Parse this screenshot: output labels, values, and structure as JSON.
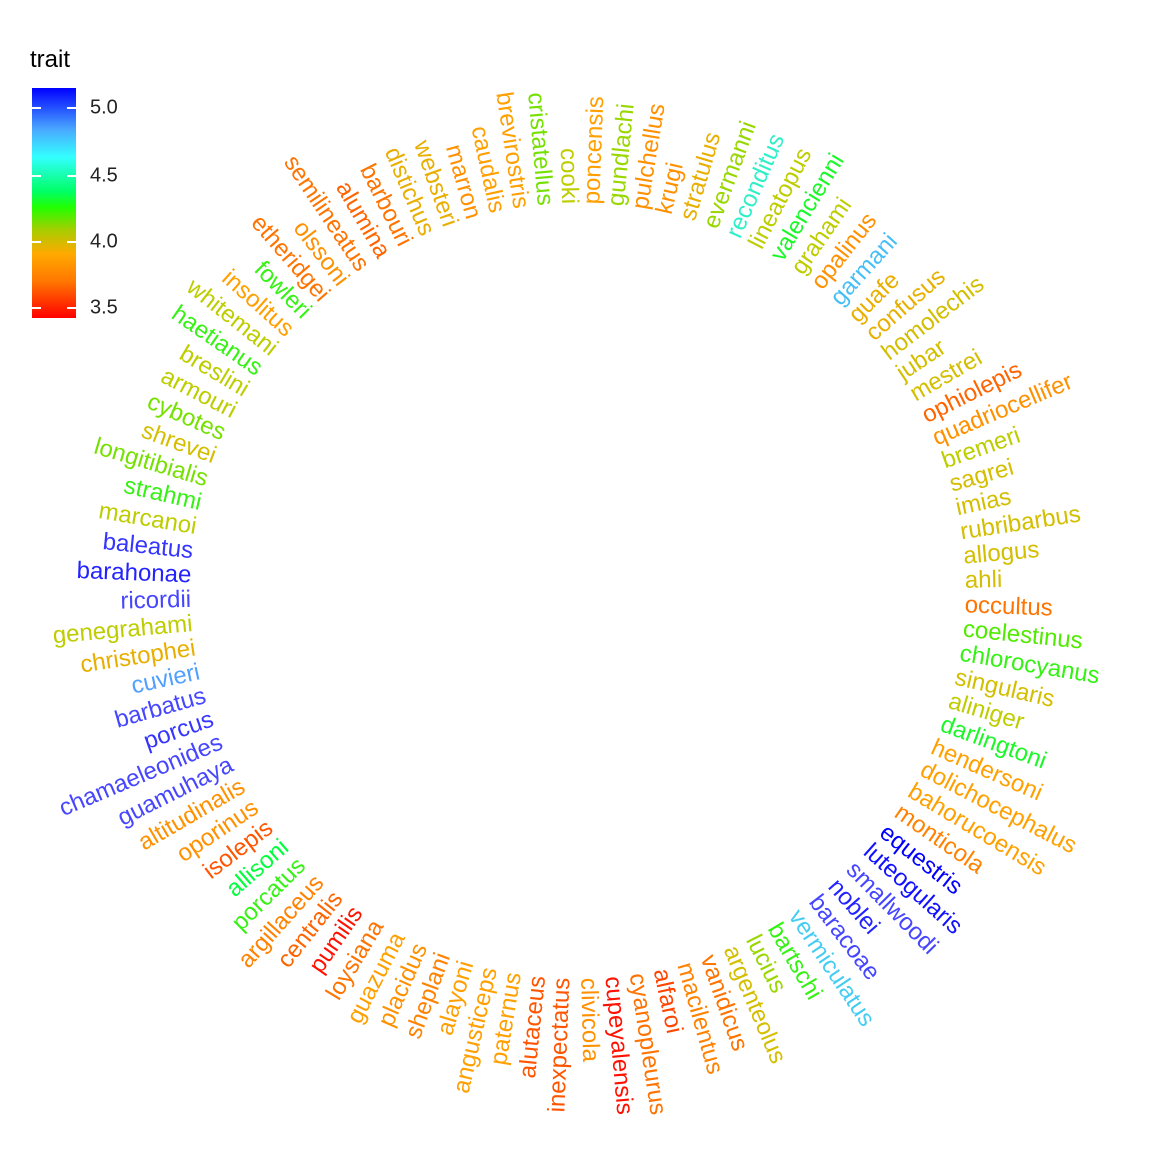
{
  "chart_data": {
    "type": "circular-tip-labels",
    "legend": {
      "title": "trait",
      "ticks": [
        {
          "label": "5.0",
          "value": 5.0
        },
        {
          "label": "4.5",
          "value": 4.5
        },
        {
          "label": "4.0",
          "value": 4.0
        },
        {
          "label": "3.5",
          "value": 3.5
        }
      ],
      "range": [
        3.4,
        5.2
      ],
      "colors": {
        "low": "#ff0000",
        "mid": "#ffaa00",
        "green": "#22ff00",
        "cyan": "#33ffff",
        "high": "#0000ff"
      }
    },
    "labels": [
      {
        "name": "occultus",
        "value": 3.75
      },
      {
        "name": "coelestinus",
        "value": 4.2
      },
      {
        "name": "chlorocyanus",
        "value": 4.25
      },
      {
        "name": "singularis",
        "value": 4.0
      },
      {
        "name": "aliniger",
        "value": 4.05
      },
      {
        "name": "darlingtoni",
        "value": 4.3
      },
      {
        "name": "hendersoni",
        "value": 3.9
      },
      {
        "name": "dolichocephalus",
        "value": 3.9
      },
      {
        "name": "bahorucoensis",
        "value": 3.9
      },
      {
        "name": "monticola",
        "value": 3.8
      },
      {
        "name": "equestris",
        "value": 5.2
      },
      {
        "name": "luteogularis",
        "value": 5.15
      },
      {
        "name": "smallwoodi",
        "value": 5.0
      },
      {
        "name": "noblei",
        "value": 5.1
      },
      {
        "name": "baracoae",
        "value": 5.0
      },
      {
        "name": "vermiculatus",
        "value": 4.7
      },
      {
        "name": "bartschi",
        "value": 4.25
      },
      {
        "name": "lucius",
        "value": 4.1
      },
      {
        "name": "argenteolus",
        "value": 4.0
      },
      {
        "name": "vanidicus",
        "value": 3.75
      },
      {
        "name": "macilentus",
        "value": 3.8
      },
      {
        "name": "alfaroi",
        "value": 3.6
      },
      {
        "name": "cyanopleurus",
        "value": 3.75
      },
      {
        "name": "cupeyalensis",
        "value": 3.45
      },
      {
        "name": "clivicola",
        "value": 3.85
      },
      {
        "name": "inexpectatus",
        "value": 3.65
      },
      {
        "name": "alutaceus",
        "value": 3.65
      },
      {
        "name": "paternus",
        "value": 3.9
      },
      {
        "name": "angusticeps",
        "value": 3.9
      },
      {
        "name": "alayoni",
        "value": 3.9
      },
      {
        "name": "sheplani",
        "value": 3.8
      },
      {
        "name": "placidus",
        "value": 3.85
      },
      {
        "name": "guazuma",
        "value": 3.9
      },
      {
        "name": "loysiana",
        "value": 3.75
      },
      {
        "name": "pumilis",
        "value": 3.45
      },
      {
        "name": "centralis",
        "value": 3.7
      },
      {
        "name": "argillaceus",
        "value": 3.8
      },
      {
        "name": "porcatus",
        "value": 4.25
      },
      {
        "name": "allisoni",
        "value": 4.35
      },
      {
        "name": "isolepis",
        "value": 3.65
      },
      {
        "name": "oporinus",
        "value": 3.85
      },
      {
        "name": "altitudinalis",
        "value": 3.85
      },
      {
        "name": "guamuhaya",
        "value": 5.0
      },
      {
        "name": "chamaeleonides",
        "value": 5.0
      },
      {
        "name": "porcus",
        "value": 5.05
      },
      {
        "name": "barbatus",
        "value": 5.0
      },
      {
        "name": "cuvieri",
        "value": 4.85
      },
      {
        "name": "christophei",
        "value": 3.95
      },
      {
        "name": "genegrahami",
        "value": 4.05
      },
      {
        "name": "ricordii",
        "value": 5.0
      },
      {
        "name": "barahonae",
        "value": 5.1
      },
      {
        "name": "baleatus",
        "value": 5.05
      },
      {
        "name": "marcanoi",
        "value": 4.05
      },
      {
        "name": "strahmi",
        "value": 4.25
      },
      {
        "name": "longitibialis",
        "value": 4.15
      },
      {
        "name": "shrevei",
        "value": 4.0
      },
      {
        "name": "cybotes",
        "value": 4.15
      },
      {
        "name": "armouri",
        "value": 4.05
      },
      {
        "name": "breslini",
        "value": 4.05
      },
      {
        "name": "haetianus",
        "value": 4.25
      },
      {
        "name": "whitemani",
        "value": 4.05
      },
      {
        "name": "insolitus",
        "value": 3.9
      },
      {
        "name": "fowleri",
        "value": 4.25
      },
      {
        "name": "etheridgei",
        "value": 3.75
      },
      {
        "name": "olssoni",
        "value": 3.85
      },
      {
        "name": "semilineatus",
        "value": 3.75
      },
      {
        "name": "alumina",
        "value": 3.7
      },
      {
        "name": "barbouri",
        "value": 3.75
      },
      {
        "name": "distichus",
        "value": 3.95
      },
      {
        "name": "websteri",
        "value": 3.95
      },
      {
        "name": "marron",
        "value": 3.85
      },
      {
        "name": "caudalis",
        "value": 3.9
      },
      {
        "name": "brevirostris",
        "value": 3.9
      },
      {
        "name": "cristatellus",
        "value": 4.15
      },
      {
        "name": "cooki",
        "value": 4.05
      },
      {
        "name": "poncensis",
        "value": 3.9
      },
      {
        "name": "gundlachi",
        "value": 4.1
      },
      {
        "name": "pulchellus",
        "value": 3.85
      },
      {
        "name": "krugi",
        "value": 3.85
      },
      {
        "name": "stratulus",
        "value": 3.95
      },
      {
        "name": "evermanni",
        "value": 4.1
      },
      {
        "name": "reconditus",
        "value": 4.55
      },
      {
        "name": "lineatopus",
        "value": 4.05
      },
      {
        "name": "valencienni",
        "value": 4.3
      },
      {
        "name": "grahami",
        "value": 4.05
      },
      {
        "name": "opalinus",
        "value": 3.85
      },
      {
        "name": "garmani",
        "value": 4.75
      },
      {
        "name": "guafe",
        "value": 3.95
      },
      {
        "name": "confusus",
        "value": 3.95
      },
      {
        "name": "homolechis",
        "value": 4.0
      },
      {
        "name": "jubar",
        "value": 4.0
      },
      {
        "name": "mestrei",
        "value": 4.0
      },
      {
        "name": "ophiolepis",
        "value": 3.7
      },
      {
        "name": "quadriocellifer",
        "value": 3.85
      },
      {
        "name": "bremeri",
        "value": 4.05
      },
      {
        "name": "sagrei",
        "value": 4.0
      },
      {
        "name": "imias",
        "value": 4.0
      },
      {
        "name": "rubribarbus",
        "value": 4.0
      },
      {
        "name": "allogus",
        "value": 4.0
      },
      {
        "name": "ahli",
        "value": 4.0
      }
    ]
  }
}
